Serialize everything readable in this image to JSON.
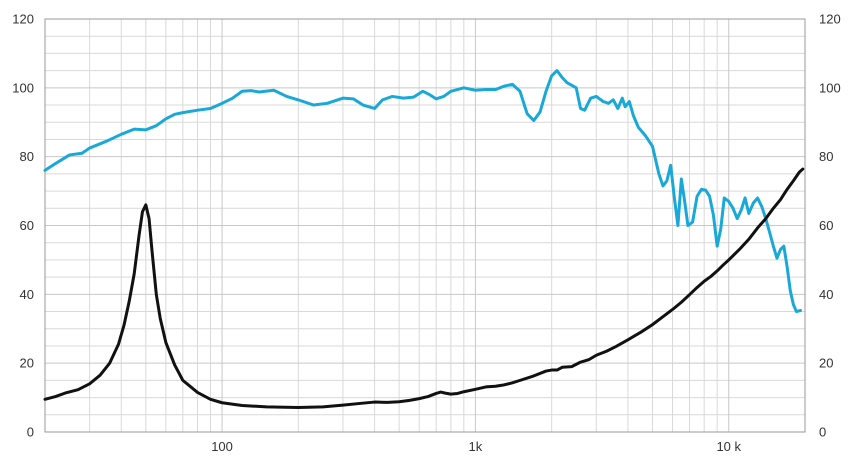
{
  "chart_data": {
    "type": "line",
    "title": "",
    "xlabel": "",
    "ylabel": "",
    "x_scale": "log",
    "xlim": [
      20,
      20000
    ],
    "ylim": [
      0,
      120
    ],
    "y_ticks": [
      0,
      20,
      40,
      60,
      80,
      100,
      120
    ],
    "y_tick_labels": [
      "0",
      "20",
      "40",
      "60",
      "80",
      "100",
      "120"
    ],
    "y2_tick_labels": [
      "0",
      "20",
      "40",
      "60",
      "80",
      "100",
      "120"
    ],
    "x_ticks": [
      100,
      1000,
      10000
    ],
    "x_tick_labels": [
      "100",
      "1k",
      "10 k"
    ],
    "grid": true,
    "legend": "none",
    "series": [
      {
        "color": "#1aa8d8",
        "points": [
          [
            20,
            76
          ],
          [
            22,
            78
          ],
          [
            25,
            80.5
          ],
          [
            28,
            81
          ],
          [
            30,
            82.5
          ],
          [
            35,
            84.5
          ],
          [
            40,
            86.5
          ],
          [
            45,
            88
          ],
          [
            50,
            87.8
          ],
          [
            55,
            89
          ],
          [
            60,
            91
          ],
          [
            65,
            92.3
          ],
          [
            70,
            92.8
          ],
          [
            80,
            93.5
          ],
          [
            90,
            94
          ],
          [
            100,
            95.5
          ],
          [
            110,
            97
          ],
          [
            120,
            99
          ],
          [
            130,
            99.2
          ],
          [
            140,
            98.8
          ],
          [
            160,
            99.3
          ],
          [
            180,
            97.5
          ],
          [
            200,
            96.5
          ],
          [
            230,
            95
          ],
          [
            260,
            95.5
          ],
          [
            300,
            97
          ],
          [
            330,
            96.8
          ],
          [
            360,
            95
          ],
          [
            400,
            94
          ],
          [
            430,
            96.5
          ],
          [
            470,
            97.5
          ],
          [
            520,
            97
          ],
          [
            570,
            97.3
          ],
          [
            620,
            99
          ],
          [
            660,
            98
          ],
          [
            700,
            96.8
          ],
          [
            750,
            97.5
          ],
          [
            800,
            99
          ],
          [
            900,
            100
          ],
          [
            1000,
            99.3
          ],
          [
            1100,
            99.5
          ],
          [
            1200,
            99.5
          ],
          [
            1300,
            100.5
          ],
          [
            1400,
            101
          ],
          [
            1500,
            99
          ],
          [
            1600,
            92.5
          ],
          [
            1700,
            90.5
          ],
          [
            1800,
            93
          ],
          [
            1900,
            99
          ],
          [
            2000,
            103.5
          ],
          [
            2100,
            105
          ],
          [
            2200,
            103
          ],
          [
            2300,
            101.5
          ],
          [
            2500,
            100
          ],
          [
            2600,
            94
          ],
          [
            2700,
            93.5
          ],
          [
            2850,
            97
          ],
          [
            3000,
            97.5
          ],
          [
            3200,
            96
          ],
          [
            3350,
            95.5
          ],
          [
            3500,
            96.5
          ],
          [
            3650,
            94
          ],
          [
            3800,
            97
          ],
          [
            3900,
            94.5
          ],
          [
            4050,
            96
          ],
          [
            4200,
            92
          ],
          [
            4400,
            88.5
          ],
          [
            4700,
            86
          ],
          [
            5000,
            83
          ],
          [
            5300,
            75
          ],
          [
            5500,
            71.5
          ],
          [
            5700,
            73
          ],
          [
            5900,
            77.5
          ],
          [
            6100,
            68
          ],
          [
            6300,
            60
          ],
          [
            6500,
            73.5
          ],
          [
            6700,
            67
          ],
          [
            6900,
            60
          ],
          [
            7200,
            61
          ],
          [
            7500,
            68.5
          ],
          [
            7800,
            70.5
          ],
          [
            8100,
            70.3
          ],
          [
            8400,
            68.5
          ],
          [
            8700,
            63
          ],
          [
            9000,
            54
          ],
          [
            9300,
            59
          ],
          [
            9600,
            68
          ],
          [
            10000,
            67
          ],
          [
            10400,
            65
          ],
          [
            10800,
            62
          ],
          [
            11200,
            64.5
          ],
          [
            11600,
            68
          ],
          [
            12000,
            63.5
          ],
          [
            12500,
            66.5
          ],
          [
            13000,
            68
          ],
          [
            13500,
            65.5
          ],
          [
            14000,
            62
          ],
          [
            14500,
            58
          ],
          [
            15000,
            54
          ],
          [
            15500,
            50.5
          ],
          [
            16000,
            53
          ],
          [
            16500,
            54
          ],
          [
            17000,
            48
          ],
          [
            17500,
            41
          ],
          [
            18000,
            37
          ],
          [
            18500,
            35
          ],
          [
            19200,
            35.3
          ]
        ]
      },
      {
        "color": "#111111",
        "points": [
          [
            20,
            9.5
          ],
          [
            22,
            10.3
          ],
          [
            24,
            11.3
          ],
          [
            27,
            12.3
          ],
          [
            30,
            14
          ],
          [
            33,
            16.5
          ],
          [
            36,
            20
          ],
          [
            39,
            25.5
          ],
          [
            41,
            31
          ],
          [
            43,
            38
          ],
          [
            45,
            46
          ],
          [
            47,
            57
          ],
          [
            48.5,
            64
          ],
          [
            50,
            66
          ],
          [
            51.5,
            62
          ],
          [
            53,
            52
          ],
          [
            55,
            40
          ],
          [
            57,
            33
          ],
          [
            60,
            26
          ],
          [
            65,
            19.5
          ],
          [
            70,
            15
          ],
          [
            80,
            11.5
          ],
          [
            90,
            9.5
          ],
          [
            100,
            8.5
          ],
          [
            120,
            7.7
          ],
          [
            150,
            7.3
          ],
          [
            200,
            7.1
          ],
          [
            250,
            7.3
          ],
          [
            300,
            7.8
          ],
          [
            350,
            8.3
          ],
          [
            400,
            8.7
          ],
          [
            450,
            8.6
          ],
          [
            500,
            8.8
          ],
          [
            550,
            9.2
          ],
          [
            600,
            9.7
          ],
          [
            650,
            10.3
          ],
          [
            700,
            11.2
          ],
          [
            730,
            11.6
          ],
          [
            760,
            11.3
          ],
          [
            800,
            11
          ],
          [
            850,
            11.2
          ],
          [
            900,
            11.7
          ],
          [
            1000,
            12.4
          ],
          [
            1100,
            13.1
          ],
          [
            1200,
            13.3
          ],
          [
            1300,
            13.7
          ],
          [
            1400,
            14.3
          ],
          [
            1500,
            15
          ],
          [
            1700,
            16.3
          ],
          [
            1900,
            17.7
          ],
          [
            2000,
            18
          ],
          [
            2100,
            18
          ],
          [
            2200,
            18.8
          ],
          [
            2400,
            19
          ],
          [
            2600,
            20.3
          ],
          [
            2800,
            21
          ],
          [
            3000,
            22.3
          ],
          [
            3300,
            23.5
          ],
          [
            3600,
            24.9
          ],
          [
            4000,
            26.8
          ],
          [
            4500,
            29
          ],
          [
            5000,
            31.2
          ],
          [
            5500,
            33.5
          ],
          [
            6000,
            35.6
          ],
          [
            6500,
            37.7
          ],
          [
            7000,
            39.9
          ],
          [
            7500,
            42
          ],
          [
            8000,
            43.8
          ],
          [
            8500,
            45.2
          ],
          [
            9000,
            46.8
          ],
          [
            9500,
            48.5
          ],
          [
            10000,
            50
          ],
          [
            11000,
            53
          ],
          [
            12000,
            56
          ],
          [
            13000,
            59.3
          ],
          [
            14000,
            62
          ],
          [
            15000,
            65
          ],
          [
            16000,
            67.5
          ],
          [
            17000,
            70.5
          ],
          [
            18000,
            73
          ],
          [
            19000,
            75.5
          ],
          [
            19600,
            76.4
          ]
        ]
      }
    ]
  }
}
